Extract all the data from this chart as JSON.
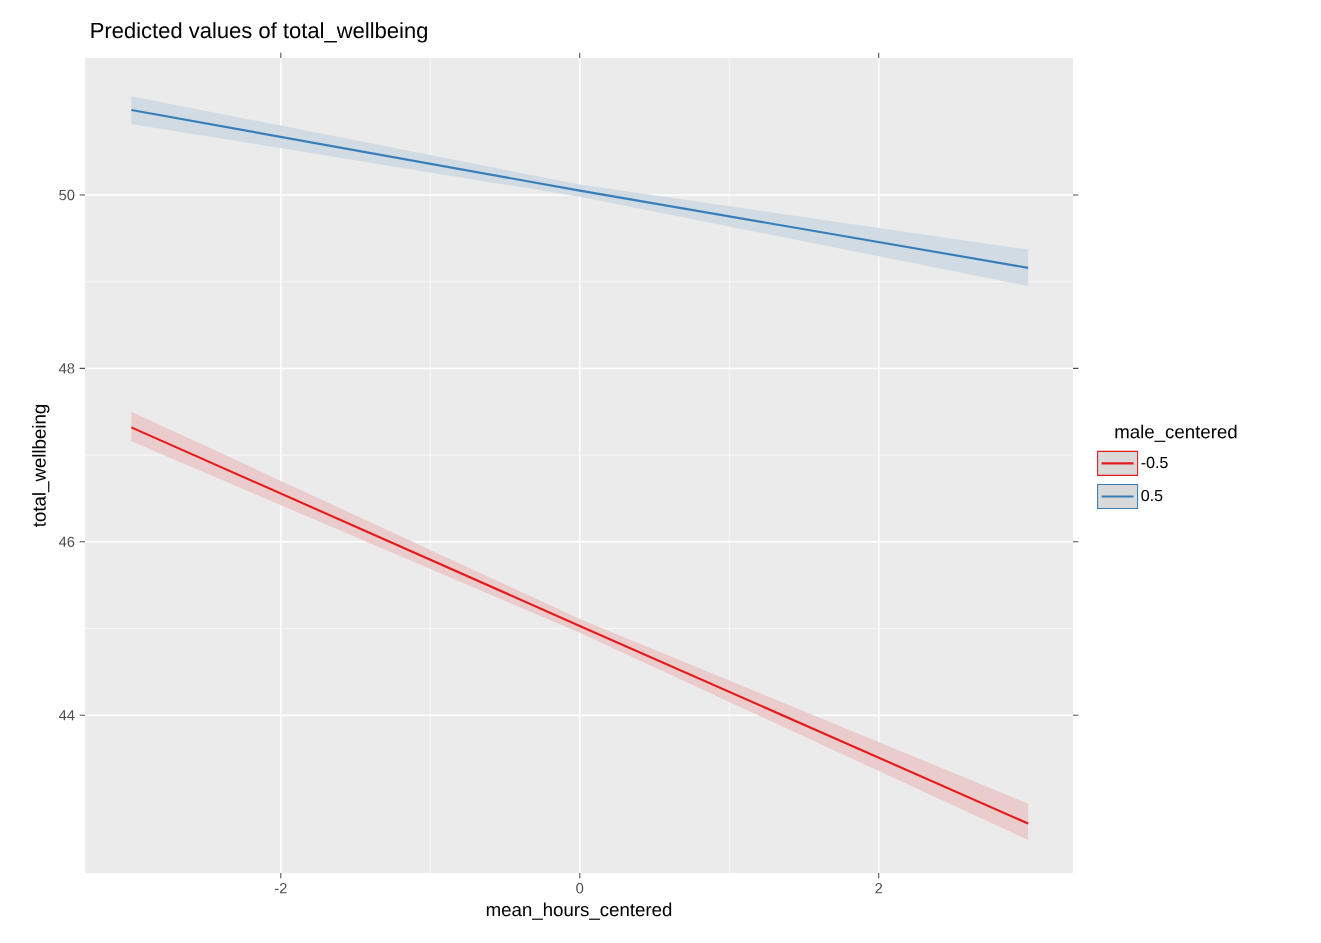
{
  "chart_data": {
    "type": "line",
    "title": "Predicted values of total_wellbeing",
    "xlabel": "mean_hours_centered",
    "ylabel": "total_wellbeing",
    "legend_title": "male_centered",
    "x": [
      -3,
      0,
      3
    ],
    "series": [
      {
        "name": "-0.5",
        "color": "#e41a1c",
        "values": [
          47.32,
          45.03,
          42.75
        ],
        "lower": [
          47.16,
          44.95,
          42.56
        ],
        "upper": [
          47.5,
          45.11,
          42.98
        ]
      },
      {
        "name": "0.5",
        "color": "#377eb8",
        "values": [
          50.98,
          50.05,
          49.16
        ],
        "lower": [
          50.82,
          49.98,
          48.95
        ],
        "upper": [
          51.14,
          50.12,
          49.37
        ]
      }
    ],
    "xlim": [
      -3.31,
      3.3
    ],
    "ylim": [
      42.18,
      51.58
    ],
    "xticks": [
      -2,
      0,
      2
    ],
    "yticks": [
      44,
      46,
      48,
      50
    ],
    "grid": true,
    "legend": "right",
    "marker": "none",
    "line_style": "solid"
  }
}
